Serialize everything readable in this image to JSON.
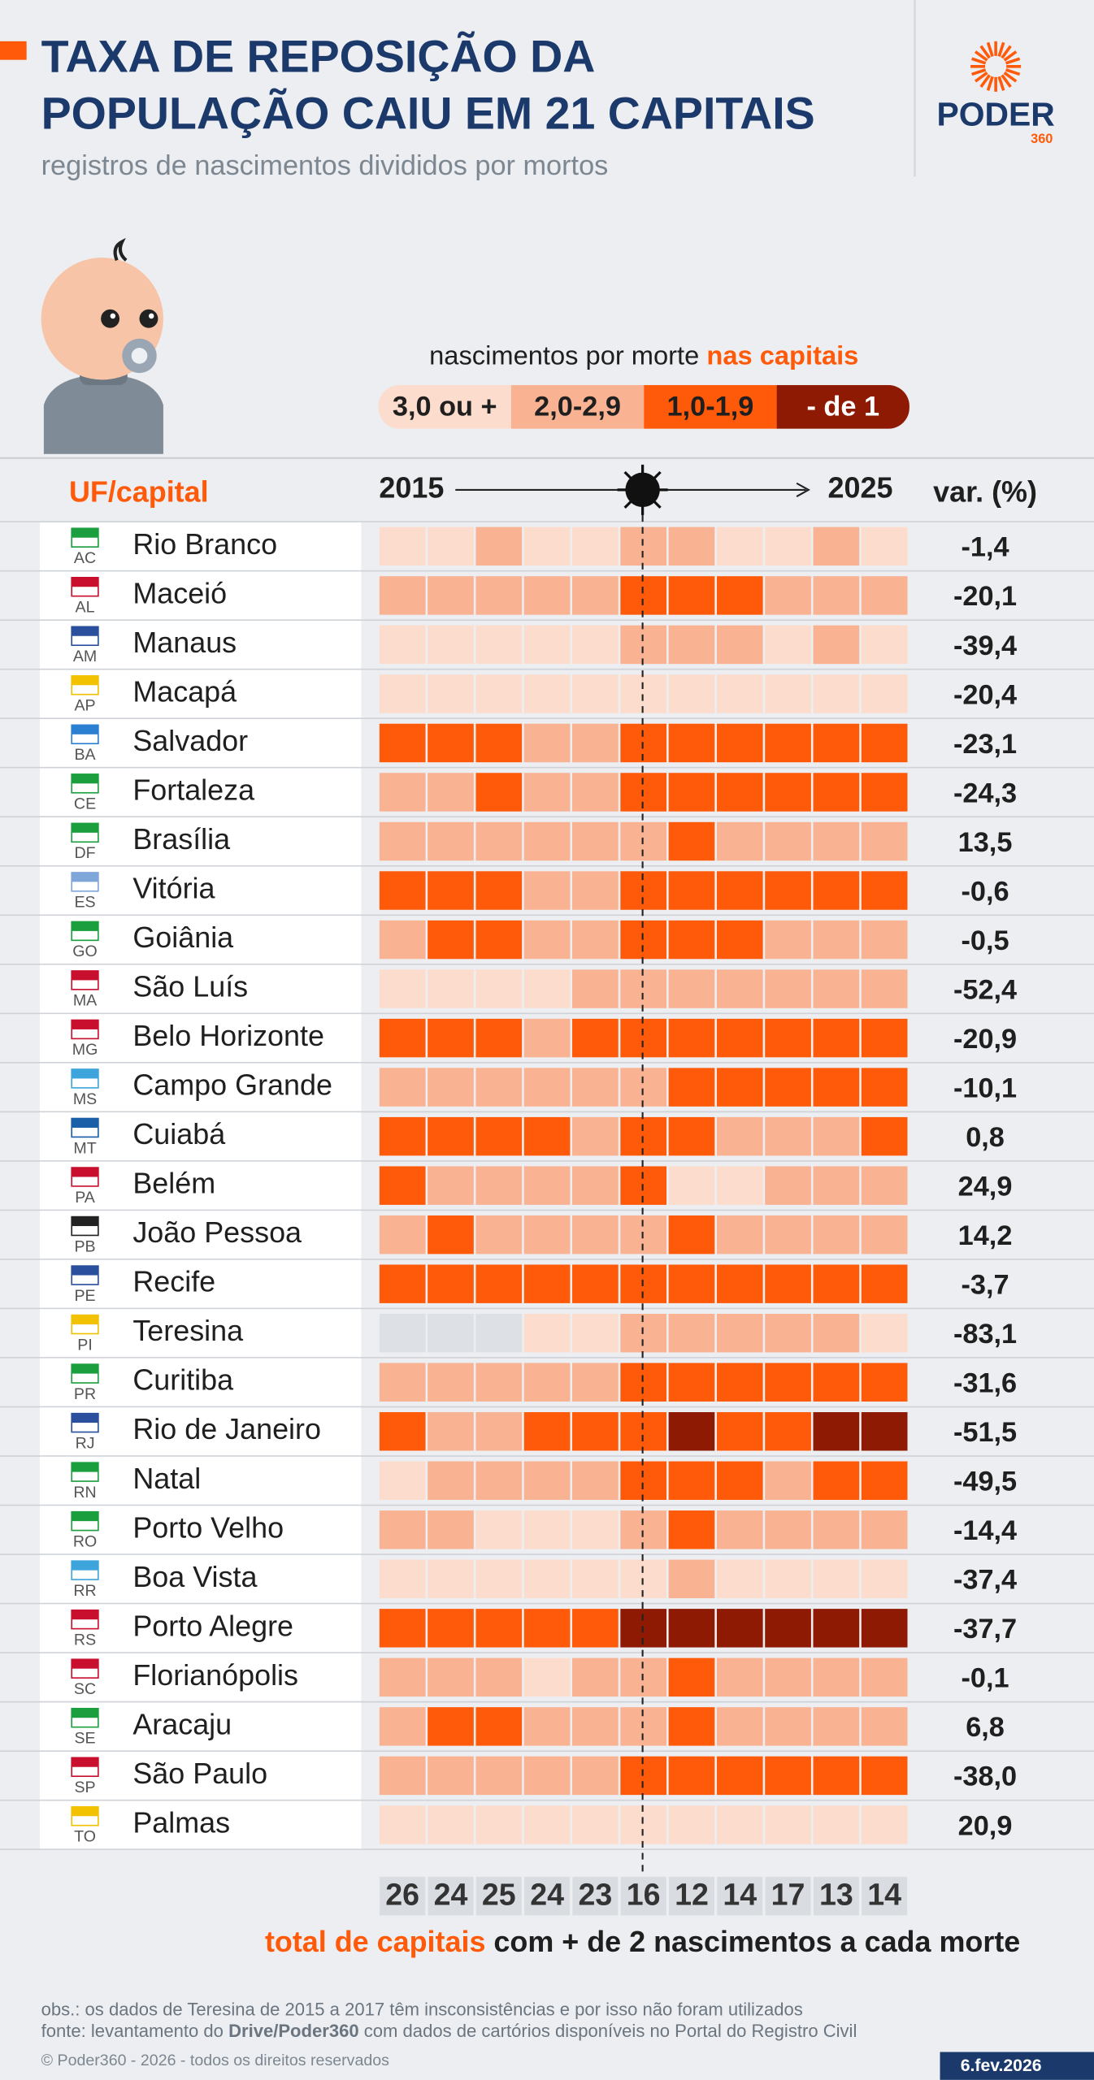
{
  "header": {
    "title_line1": "TAXA DE REPOSIÇÃO DA",
    "title_line2": "POPULAÇÃO CAIU EM 21 CAPITAIS",
    "subtitle": "registros de nascimentos divididos por mortos",
    "logo_name": "PODER",
    "logo_number": "360"
  },
  "chart_data": {
    "type": "heatmap",
    "legend_title": "nascimentos por morte",
    "legend_title_highlight": "nas capitais",
    "legend": [
      {
        "label": "3,0 ou +",
        "color": "#fcdccc",
        "text_color": "#1f1f1f"
      },
      {
        "label": "2,0-2,9",
        "color": "#f9b393",
        "text_color": "#1f1f1f"
      },
      {
        "label": "1,0-1,9",
        "color": "#ff5a0a",
        "text_color": "#1f1f1f"
      },
      {
        "label": "- de 1",
        "color": "#8e1a03",
        "text_color": "#ffffff"
      }
    ],
    "missing_color": "#dde1e5",
    "row_header": "UF/capital",
    "x_start_label": "2015",
    "x_end_label": "2025",
    "change_header": "var. (%)",
    "uf": [
      "AC",
      "AL",
      "AM",
      "AP",
      "BA",
      "CE",
      "DF",
      "ES",
      "GO",
      "MA",
      "MG",
      "MS",
      "MT",
      "PA",
      "PB",
      "PE",
      "PI",
      "PR",
      "RJ",
      "RN",
      "RO",
      "RR",
      "RS",
      "SC",
      "SE",
      "SP",
      "TO"
    ],
    "categories": [
      "Rio Branco",
      "Maceió",
      "Manaus",
      "Macapá",
      "Salvador",
      "Fortaleza",
      "Brasília",
      "Vitória",
      "Goiânia",
      "São Luís",
      "Belo Horizonte",
      "Campo Grande",
      "Cuiabá",
      "Belém",
      "João Pessoa",
      "Recife",
      "Teresina",
      "Curitiba",
      "Rio de Janeiro",
      "Natal",
      "Porto Velho",
      "Boa Vista",
      "Porto Alegre",
      "Florianópolis",
      "Aracaju",
      "São Paulo",
      "Palmas"
    ],
    "levels": [
      [
        0,
        0,
        1,
        0,
        0,
        1,
        1,
        0,
        0,
        1,
        0
      ],
      [
        1,
        1,
        1,
        1,
        1,
        2,
        2,
        2,
        1,
        1,
        1
      ],
      [
        0,
        0,
        0,
        0,
        0,
        1,
        1,
        1,
        0,
        1,
        0
      ],
      [
        0,
        0,
        0,
        0,
        0,
        0,
        0,
        0,
        0,
        0,
        0
      ],
      [
        2,
        2,
        2,
        1,
        1,
        2,
        2,
        2,
        2,
        2,
        2
      ],
      [
        1,
        1,
        2,
        1,
        1,
        2,
        2,
        2,
        2,
        2,
        2
      ],
      [
        1,
        1,
        1,
        1,
        1,
        1,
        2,
        1,
        1,
        1,
        1
      ],
      [
        2,
        2,
        2,
        1,
        1,
        2,
        2,
        2,
        2,
        2,
        2
      ],
      [
        1,
        2,
        2,
        1,
        1,
        2,
        2,
        2,
        1,
        1,
        1
      ],
      [
        0,
        0,
        0,
        0,
        1,
        1,
        1,
        1,
        1,
        1,
        1
      ],
      [
        2,
        2,
        2,
        1,
        2,
        2,
        2,
        2,
        2,
        2,
        2
      ],
      [
        1,
        1,
        1,
        1,
        1,
        1,
        2,
        2,
        2,
        2,
        2
      ],
      [
        2,
        2,
        2,
        2,
        1,
        2,
        2,
        1,
        1,
        1,
        2
      ],
      [
        2,
        1,
        1,
        1,
        1,
        2,
        0,
        0,
        1,
        1,
        1
      ],
      [
        1,
        2,
        1,
        1,
        1,
        1,
        2,
        1,
        1,
        1,
        1
      ],
      [
        2,
        2,
        2,
        2,
        2,
        2,
        2,
        2,
        2,
        2,
        2
      ],
      [
        null,
        null,
        null,
        0,
        0,
        1,
        1,
        1,
        1,
        1,
        0
      ],
      [
        1,
        1,
        1,
        1,
        1,
        2,
        2,
        2,
        2,
        2,
        2
      ],
      [
        2,
        1,
        1,
        2,
        2,
        2,
        3,
        2,
        2,
        3,
        3
      ],
      [
        0,
        1,
        1,
        1,
        1,
        2,
        2,
        2,
        1,
        2,
        2
      ],
      [
        1,
        1,
        0,
        0,
        0,
        1,
        2,
        1,
        1,
        1,
        1
      ],
      [
        0,
        0,
        0,
        0,
        0,
        0,
        1,
        0,
        0,
        0,
        0
      ],
      [
        2,
        2,
        2,
        2,
        2,
        3,
        3,
        3,
        3,
        3,
        3
      ],
      [
        1,
        1,
        1,
        0,
        1,
        1,
        2,
        1,
        1,
        1,
        1
      ],
      [
        1,
        2,
        2,
        1,
        1,
        1,
        2,
        1,
        1,
        1,
        1
      ],
      [
        1,
        1,
        1,
        1,
        1,
        2,
        2,
        2,
        2,
        2,
        2
      ],
      [
        0,
        0,
        0,
        0,
        0,
        0,
        0,
        0,
        0,
        0,
        0
      ]
    ],
    "changes": [
      -1.4,
      -20.1,
      -39.4,
      -20.4,
      -23.1,
      -24.3,
      13.5,
      -0.6,
      -0.5,
      -52.4,
      -20.9,
      -10.1,
      0.8,
      24.9,
      14.2,
      -3.7,
      -83.1,
      -31.6,
      -51.5,
      -49.5,
      -14.4,
      -37.4,
      -37.7,
      -0.1,
      6.8,
      -38.0,
      20.9
    ],
    "change_labels": [
      "-1,4",
      "-20,1",
      "-39,4",
      "-20,4",
      "-23,1",
      "-24,3",
      "13,5",
      "-0,6",
      "-0,5",
      "-52,4",
      "-20,9",
      "-10,1",
      "0,8",
      "24,9",
      "14,2",
      "-3,7",
      "-83,1",
      "-31,6",
      "-51,5",
      "-49,5",
      "-14,4",
      "-37,4",
      "-37,7",
      "-0,1",
      "6,8",
      "-38,0",
      "20,9"
    ],
    "totals": [
      26,
      24,
      25,
      24,
      23,
      16,
      12,
      14,
      17,
      13,
      14
    ],
    "totals_caption_highlight": "total de capitais",
    "totals_caption": "com + de 2 nascimentos a cada morte"
  },
  "footer": {
    "note": "obs.: os dados de Teresina de 2015 a 2017 têm insconsistências e por isso não foram utilizados",
    "source_start": "fonte: levantamento do",
    "source_bold": "Drive/Poder360",
    "source_end": "com dados de cartórios disponíveis no Portal do Registro Civil",
    "copyright": "© Poder360 - 2026 - todos os direitos reservados",
    "date": "6.fev.2026"
  }
}
